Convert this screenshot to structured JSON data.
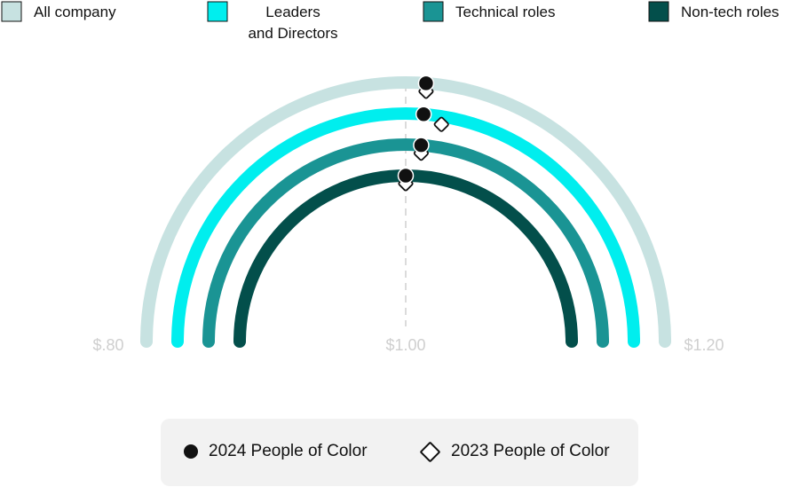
{
  "chart_data": {
    "type": "semicircle-gauge",
    "axis": {
      "min": 0.8,
      "mid": 1.0,
      "max": 1.2,
      "tick_labels": [
        "$.80",
        "$1.00",
        "$1.20"
      ]
    },
    "series": [
      {
        "name": "All company",
        "color": "#c7e2e1",
        "value_2024": 1.01,
        "value_2023": 1.01
      },
      {
        "name": "Leaders and Directors",
        "color": "#00eeee",
        "value_2024": 1.01,
        "value_2023": 1.02
      },
      {
        "name": "Technical roles",
        "color": "#1a9494",
        "value_2024": 1.01,
        "value_2023": 1.01
      },
      {
        "name": "Non-tech roles",
        "color": "#034f4b",
        "value_2024": 1.0,
        "value_2023": 1.0
      }
    ],
    "marker_legend": {
      "year_2024_label": "2024 People of Color",
      "year_2023_label": "2023 People of Color"
    }
  }
}
